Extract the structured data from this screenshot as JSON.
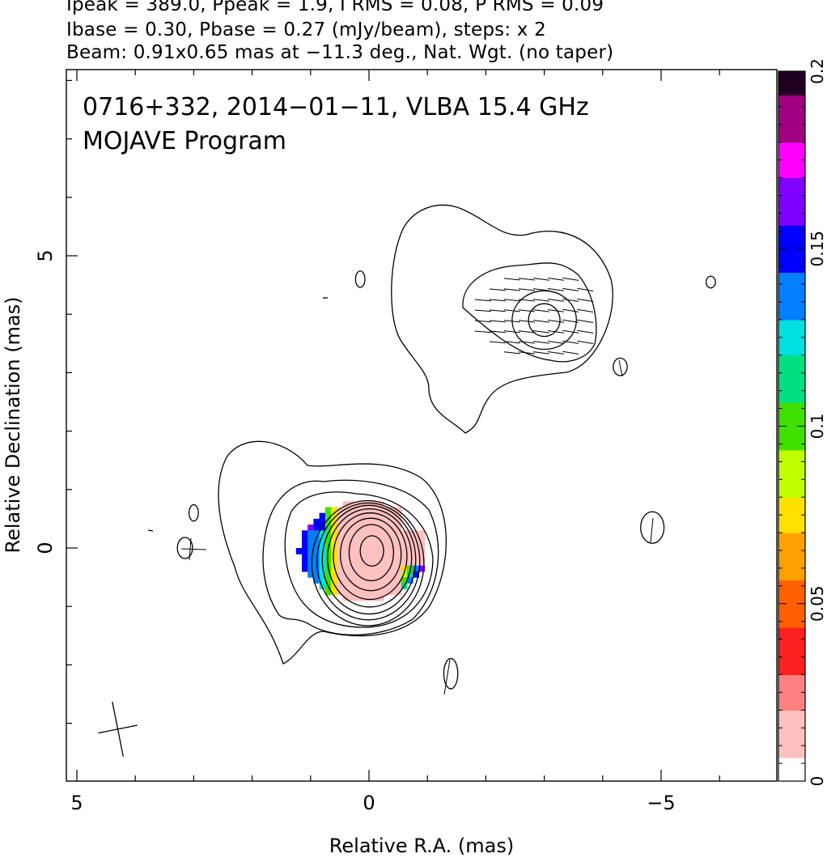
{
  "header": {
    "line1": "Ipeak = 389.0, Ppeak = 1.9, I RMS = 0.08, P RMS = 0.09",
    "line2": "Ibase = 0.30, Pbase = 0.27 (mJy/beam), steps: x 2",
    "line3": "Beam: 0.91x0.65 mas at −11.3 deg., Nat. Wgt. (no taper)"
  },
  "chart_data": {
    "type": "heatmap",
    "title": "0716+332, 2014−01−11, VLBA 15.4 GHz",
    "subtitle": "MOJAVE Program",
    "xlabel": "Relative R.A. (mas)",
    "ylabel": "Relative Declination (mas)",
    "xlim": [
      5.2,
      -7
    ],
    "ylim": [
      -4,
      8.2
    ],
    "x_ticks": [
      5,
      0,
      -5
    ],
    "x_tick_labels": [
      "5",
      "0",
      "−5"
    ],
    "y_ticks": [
      5,
      0
    ],
    "y_tick_labels": [
      "5",
      "0"
    ],
    "colorbar": {
      "range": [
        0,
        0.2
      ],
      "ticks": [
        0,
        0.05,
        0.1,
        0.15,
        0.2
      ],
      "tick_labels": [
        "0",
        "0.05",
        "0.1",
        "0.15",
        "0.2"
      ],
      "colors": [
        "#ffffff",
        "#ffc0c0",
        "#ff8080",
        "#ff2020",
        "#ff6000",
        "#ffa000",
        "#ffe000",
        "#c0ff00",
        "#40e000",
        "#00e080",
        "#00e0e0",
        "#0080ff",
        "#0000ff",
        "#8000ff",
        "#ff00ff",
        "#a00080",
        "#200020"
      ]
    },
    "components": [
      {
        "name": "core",
        "center": [
          0,
          0
        ],
        "contour_levels_mjy": [
          0.3,
          0.6,
          1.2,
          2.4,
          4.8,
          9.6,
          19.2,
          38.4,
          76.8,
          153.6,
          307.2
        ]
      },
      {
        "name": "jet",
        "center": [
          -3,
          3.9
        ],
        "contour_levels_mjy": [
          0.3,
          0.6,
          1.2,
          2.4
        ]
      }
    ],
    "beam": {
      "major_mas": 0.91,
      "minor_mas": 0.65,
      "pa_deg": -11.3,
      "center": [
        4.3,
        -3.1
      ]
    },
    "pol_fraction_map": {
      "region": "core",
      "range": [
        0,
        0.2
      ],
      "description": "Fractional polarization pixels around the core"
    }
  }
}
